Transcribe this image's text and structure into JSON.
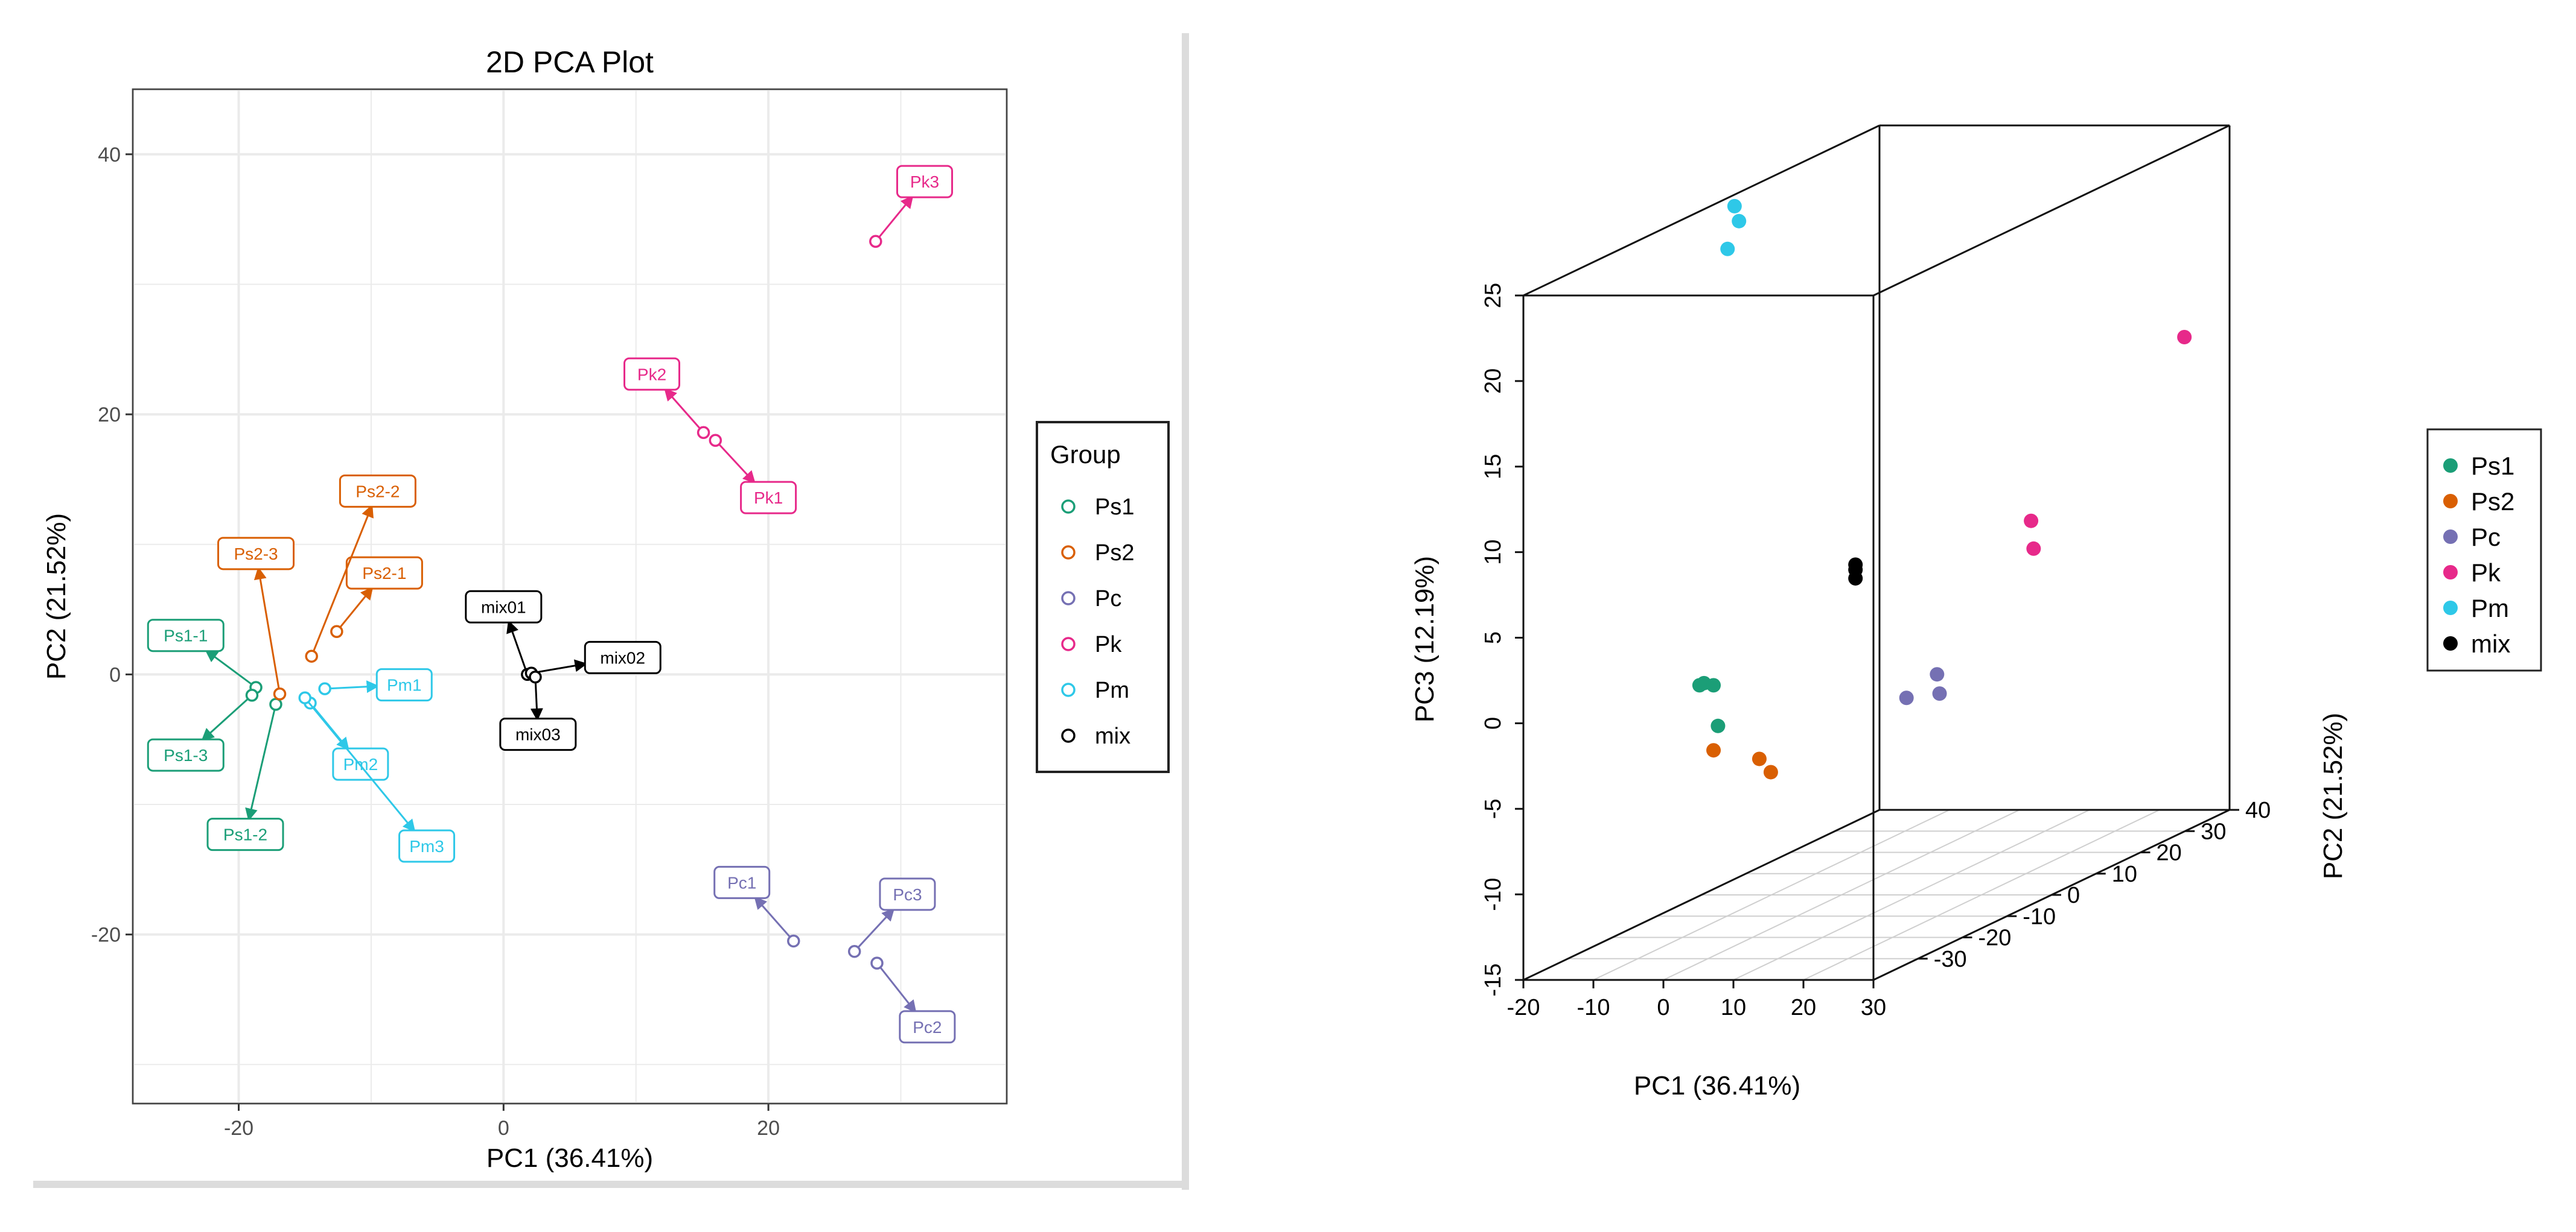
{
  "colors": {
    "Ps1": "#1b9e77",
    "Ps2": "#d95f02",
    "Pc": "#7570b3",
    "Pk": "#e7298a",
    "Pm": "#2ec8e8",
    "mix": "#000000",
    "grid": "#ebebeb",
    "axis": "#333333"
  },
  "chart_data": [
    {
      "type": "scatter",
      "title": "2D PCA Plot",
      "xlabel": "PC1 (36.41%)",
      "ylabel": "PC2 (21.52%)",
      "xlim": [
        -28,
        38
      ],
      "ylim": [
        -33,
        45
      ],
      "xticks": [
        -20,
        0,
        20
      ],
      "yticks": [
        -20,
        0,
        20,
        40
      ],
      "legend_title": "Group",
      "legend_position": "right",
      "groups": [
        "Ps1",
        "Ps2",
        "Pc",
        "Pk",
        "Pm",
        "mix"
      ],
      "points": [
        {
          "label": "Ps1-1",
          "group": "Ps1",
          "x": -18.7,
          "y": -1.0,
          "lx": -24.0,
          "ly": 3.0
        },
        {
          "label": "Ps1-2",
          "group": "Ps1",
          "x": -17.2,
          "y": -2.3,
          "lx": -19.5,
          "ly": -12.3
        },
        {
          "label": "Ps1-3",
          "group": "Ps1",
          "x": -19.0,
          "y": -1.6,
          "lx": -24.0,
          "ly": -6.2
        },
        {
          "label": "Ps2-1",
          "group": "Ps2",
          "x": -12.6,
          "y": 3.3,
          "lx": -9.0,
          "ly": 7.8
        },
        {
          "label": "Ps2-2",
          "group": "Ps2",
          "x": -14.5,
          "y": 1.4,
          "lx": -9.5,
          "ly": 14.1
        },
        {
          "label": "Ps2-3",
          "group": "Ps2",
          "x": -16.9,
          "y": -1.5,
          "lx": -18.7,
          "ly": 9.3
        },
        {
          "label": "Pc1",
          "group": "Pc",
          "x": 21.9,
          "y": -20.5,
          "lx": 18.0,
          "ly": -16.0
        },
        {
          "label": "Pc2",
          "group": "Pc",
          "x": 28.2,
          "y": -22.2,
          "lx": 32.0,
          "ly": -27.1
        },
        {
          "label": "Pc3",
          "group": "Pc",
          "x": 26.5,
          "y": -21.3,
          "lx": 30.5,
          "ly": -16.9
        },
        {
          "label": "Pk1",
          "group": "Pk",
          "x": 16.0,
          "y": 18.0,
          "lx": 20.0,
          "ly": 13.6
        },
        {
          "label": "Pk2",
          "group": "Pk",
          "x": 15.1,
          "y": 18.6,
          "lx": 11.2,
          "ly": 23.1
        },
        {
          "label": "Pk3",
          "group": "Pk",
          "x": 28.1,
          "y": 33.3,
          "lx": 31.8,
          "ly": 37.9
        },
        {
          "label": "Pm1",
          "group": "Pm",
          "x": -13.5,
          "y": -1.1,
          "lx": -7.5,
          "ly": -0.8
        },
        {
          "label": "Pm2",
          "group": "Pm",
          "x": -14.6,
          "y": -2.2,
          "lx": -10.8,
          "ly": -6.9
        },
        {
          "label": "Pm3",
          "group": "Pm",
          "x": -15.0,
          "y": -1.8,
          "lx": -5.8,
          "ly": -13.2
        },
        {
          "label": "mix01",
          "group": "mix",
          "x": 1.8,
          "y": 0.0,
          "lx": 0.0,
          "ly": 5.2
        },
        {
          "label": "mix02",
          "group": "mix",
          "x": 2.1,
          "y": 0.1,
          "lx": 9.0,
          "ly": 1.3
        },
        {
          "label": "mix03",
          "group": "mix",
          "x": 2.4,
          "y": -0.2,
          "lx": 2.6,
          "ly": -4.6
        }
      ]
    },
    {
      "type": "scatter3d",
      "title": "",
      "xlabel": "PC1 (36.41%)",
      "ylabel": "PC2 (21.52%)",
      "zlabel": "PC3 (12.19%)",
      "xlim": [
        -20,
        30
      ],
      "ylim": [
        -40,
        40
      ],
      "zlim": [
        -15,
        25
      ],
      "xticks": [
        -20,
        -10,
        0,
        10,
        20,
        30
      ],
      "yticks": [
        -30,
        -20,
        -10,
        0,
        10,
        20,
        30,
        40
      ],
      "zticks": [
        -15,
        -10,
        -5,
        0,
        5,
        10,
        15,
        20,
        25
      ],
      "legend_position": "right",
      "groups": [
        "Ps1",
        "Ps2",
        "Pc",
        "Pk",
        "Pm",
        "mix"
      ],
      "points": [
        {
          "group": "Ps1",
          "x": -19,
          "y": -1,
          "z": -2.5
        },
        {
          "group": "Ps1",
          "x": -17,
          "y": -2,
          "z": -2.5
        },
        {
          "group": "Ps1",
          "x": -19,
          "y": -2,
          "z": -2.5
        },
        {
          "group": "Ps1",
          "x": -17,
          "y": -1,
          "z": -5.0
        },
        {
          "group": "Ps2",
          "x": -12,
          "y": 3,
          "z": -8.2
        },
        {
          "group": "Ps2",
          "x": -17,
          "y": -2,
          "z": -6.3
        },
        {
          "group": "Ps2",
          "x": -13,
          "y": 2,
          "z": -7.3
        },
        {
          "group": "Pc",
          "x": 22,
          "y": -20,
          "z": -1.0
        },
        {
          "group": "Pc",
          "x": 28,
          "y": -22,
          "z": -0.5
        },
        {
          "group": "Pc",
          "x": 27,
          "y": -21,
          "z": 0.5
        },
        {
          "group": "Pk",
          "x": 16,
          "y": 18,
          "z": 3.0
        },
        {
          "group": "Pk",
          "x": 15,
          "y": 19,
          "z": 4.5
        },
        {
          "group": "Pk",
          "x": 28,
          "y": 33,
          "z": 13.5
        },
        {
          "group": "Pm",
          "x": -14,
          "y": -1,
          "z": 24.5
        },
        {
          "group": "Pm",
          "x": -15,
          "y": -2,
          "z": 23.0
        },
        {
          "group": "Pm",
          "x": -14,
          "y": -2,
          "z": 25.5
        },
        {
          "group": "mix",
          "x": 2,
          "y": 0,
          "z": 3.5
        },
        {
          "group": "mix",
          "x": 2,
          "y": 0,
          "z": 4.0
        },
        {
          "group": "mix",
          "x": 2,
          "y": 0,
          "z": 4.3
        }
      ]
    }
  ]
}
